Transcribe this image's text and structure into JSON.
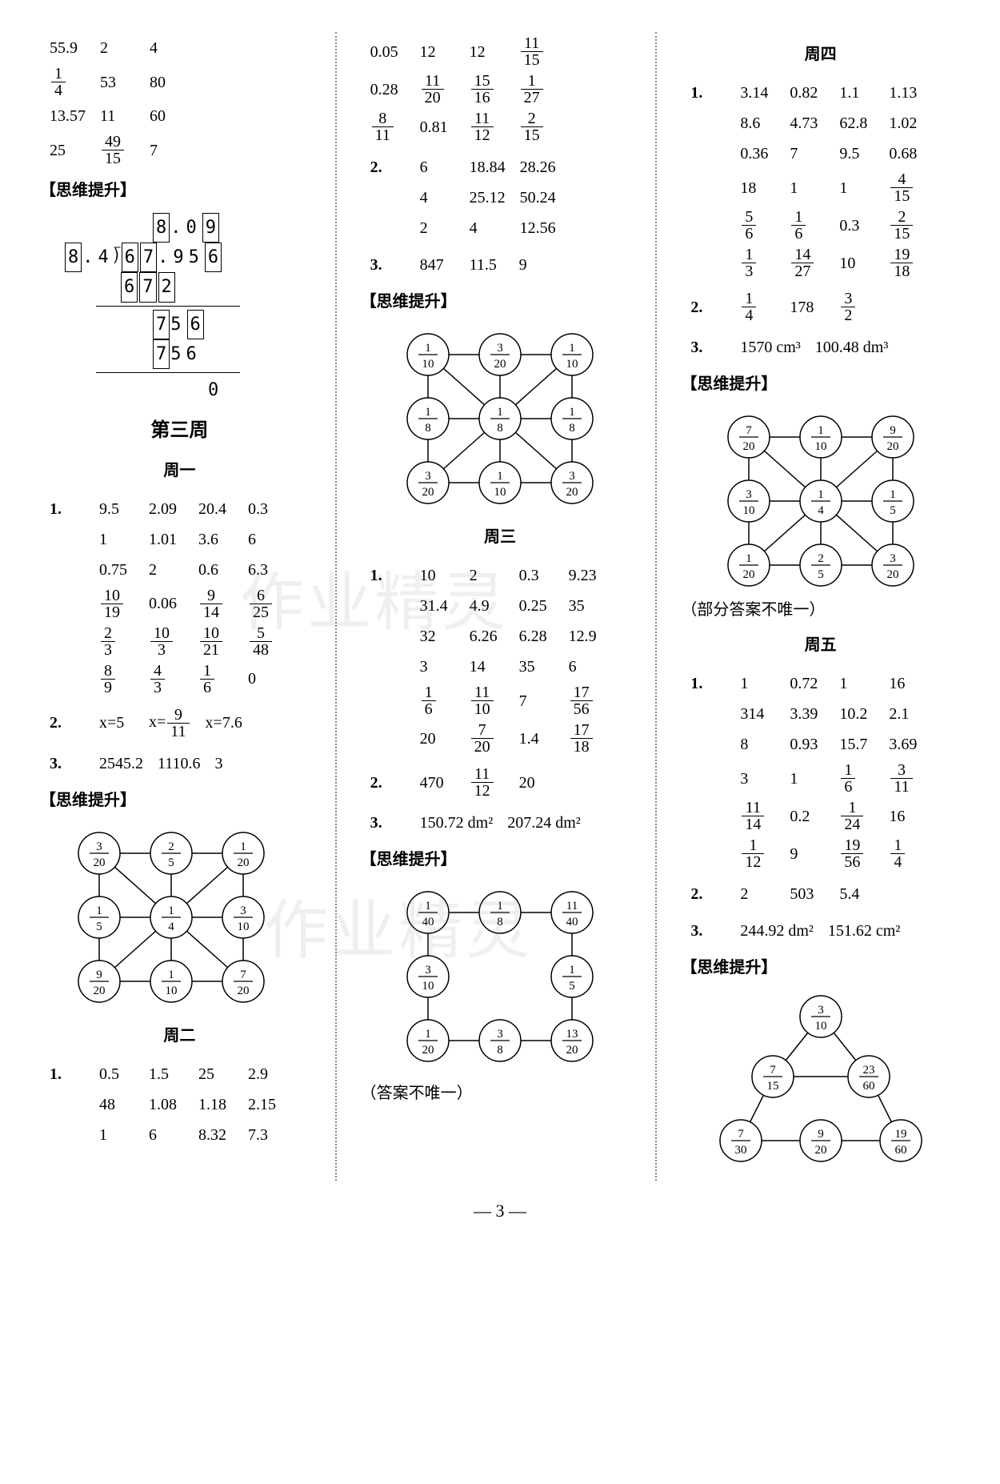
{
  "page_number": "— 3 —",
  "bracket_label": "【思维提升】",
  "section_week3": "第三周",
  "day1": "周一",
  "day2": "周二",
  "day3": "周三",
  "day4": "周四",
  "day5": "周五",
  "col1": {
    "top_rows": [
      [
        "55.9",
        "2",
        "4"
      ],
      [
        "1/4",
        "53",
        "80"
      ],
      [
        "13.57",
        "11",
        "60"
      ],
      [
        "25",
        "49/15",
        "7"
      ]
    ],
    "longdiv": {
      "quotient": [
        "8",
        ".0",
        "9"
      ],
      "divisor": [
        "8",
        ".4"
      ],
      "dividend": [
        "6",
        "7",
        ".9",
        "5",
        "6"
      ],
      "step1": [
        "6",
        "7",
        "2"
      ],
      "step2": [
        "7",
        "5",
        "6"
      ],
      "step3": [
        "7",
        "5",
        "6"
      ],
      "remainder": "0"
    },
    "q1_rows": [
      [
        "9.5",
        "2.09",
        "20.4",
        "0.3"
      ],
      [
        "1",
        "1.01",
        "3.6",
        "6"
      ],
      [
        "0.75",
        "2",
        "0.6",
        "6.3"
      ],
      [
        "10/19",
        "0.06",
        "9/14",
        "6/25"
      ],
      [
        "2/3",
        "10/3",
        "10/21",
        "5/48"
      ],
      [
        "8/9",
        "4/3",
        "1/6",
        "0"
      ]
    ],
    "q2": [
      "x=5",
      "x=9/11",
      "x=7.6"
    ],
    "q3": [
      "2545.2",
      "1110.6",
      "3"
    ],
    "magic_sq1": {
      "nodes": [
        "3/20",
        "2/5",
        "1/20",
        "1/5",
        "1/4",
        "3/10",
        "9/20",
        "1/10",
        "7/20"
      ]
    },
    "day2_q1_rows": [
      [
        "0.5",
        "1.5",
        "25",
        "2.9"
      ],
      [
        "48",
        "1.08",
        "1.18",
        "2.15"
      ],
      [
        "1",
        "6",
        "8.32",
        "7.3"
      ]
    ]
  },
  "col2": {
    "top_rows": [
      [
        "0.05",
        "12",
        "12",
        "11/15"
      ],
      [
        "0.28",
        "11/20",
        "15/16",
        "1/27"
      ],
      [
        "8/11",
        "0.81",
        "11/12",
        "2/15"
      ]
    ],
    "q2_rows": [
      [
        "6",
        "18.84",
        "28.26"
      ],
      [
        "4",
        "25.12",
        "50.24"
      ],
      [
        "2",
        "4",
        "12.56"
      ]
    ],
    "q3": [
      "847",
      "11.5",
      "9"
    ],
    "magic_sq2": {
      "nodes": [
        "1/10",
        "3/20",
        "1/10",
        "1/8",
        "1/8",
        "1/8",
        "3/20",
        "1/10",
        "3/20"
      ]
    },
    "day3_q1_rows": [
      [
        "10",
        "2",
        "0.3",
        "9.23"
      ],
      [
        "31.4",
        "4.9",
        "0.25",
        "35"
      ],
      [
        "32",
        "6.26",
        "6.28",
        "12.9"
      ],
      [
        "3",
        "14",
        "35",
        "6"
      ],
      [
        "1/6",
        "11/10",
        "7",
        "17/56"
      ],
      [
        "20",
        "7/20",
        "1.4",
        "17/18"
      ]
    ],
    "day3_q2": [
      "470",
      "11/12",
      "20"
    ],
    "day3_q3": [
      "150.72 dm²",
      "207.24 dm²"
    ],
    "magic_sq3": {
      "nodes": [
        "1/40",
        "1/8",
        "11/40",
        "3/10",
        "",
        "1/5",
        "1/20",
        "3/8",
        "13/20"
      ]
    },
    "note": "（答案不唯一）"
  },
  "col3": {
    "q1_rows": [
      [
        "3.14",
        "0.82",
        "1.1",
        "1.13"
      ],
      [
        "8.6",
        "4.73",
        "62.8",
        "1.02"
      ],
      [
        "0.36",
        "7",
        "9.5",
        "0.68"
      ],
      [
        "18",
        "1",
        "1",
        "4/15"
      ],
      [
        "5/6",
        "1/6",
        "0.3",
        "2/15"
      ],
      [
        "1/3",
        "14/27",
        "10",
        "19/18"
      ]
    ],
    "q2": [
      "1/4",
      "178",
      "3/2"
    ],
    "q3": [
      "1570 cm³",
      "100.48 dm³"
    ],
    "magic_sq4": {
      "nodes": [
        "7/20",
        "1/10",
        "9/20",
        "3/10",
        "1/4",
        "1/5",
        "1/20",
        "2/5",
        "3/20"
      ]
    },
    "note": "（部分答案不唯一）",
    "day5_q1_rows": [
      [
        "1",
        "0.72",
        "1",
        "16"
      ],
      [
        "314",
        "3.39",
        "10.2",
        "2.1"
      ],
      [
        "8",
        "0.93",
        "15.7",
        "3.69"
      ],
      [
        "3",
        "1",
        "1/6",
        "3/11"
      ],
      [
        "11/14",
        "0.2",
        "1/24",
        "16"
      ],
      [
        "1/12",
        "9",
        "19/56",
        "1/4"
      ]
    ],
    "day5_q2": [
      "2",
      "503",
      "5.4"
    ],
    "day5_q3": [
      "244.92 dm²",
      "151.62 cm²"
    ],
    "tri_diagram": {
      "top": "3/10",
      "mid_left": "7/15",
      "mid_right": "23/60",
      "bot": [
        "7/30",
        "9/20",
        "19/60"
      ]
    }
  },
  "watermark_text": "作业精灵",
  "colors": {
    "text": "#000000",
    "bg": "#ffffff",
    "divider": "#888888",
    "watermark": "rgba(120,120,120,0.12)"
  }
}
